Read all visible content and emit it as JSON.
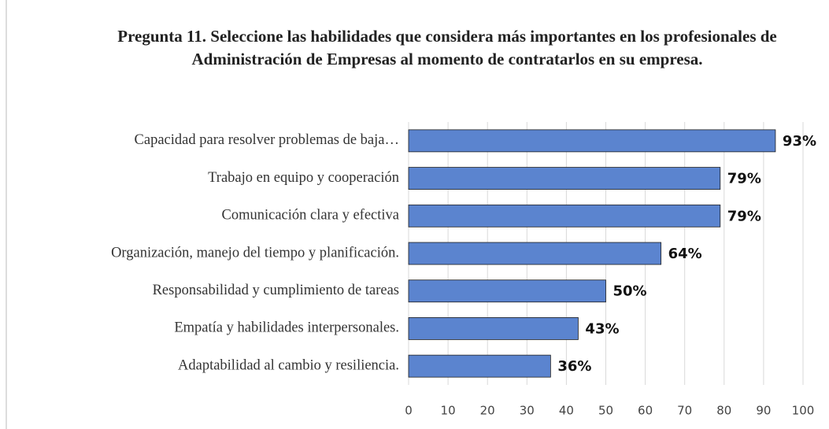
{
  "chart_data": {
    "type": "barh",
    "title": "Pregunta 11. Seleccione las habilidades que considera más importantes en los profesionales de Administración de Empresas al momento de contratarlos en su empresa.",
    "categories": [
      "Capacidad para resolver problemas de baja…",
      "Trabajo en equipo y cooperación",
      "Comunicación clara y efectiva",
      "Organización, manejo del tiempo y planificación.",
      "Responsabilidad y cumplimiento de tareas",
      "Empatía y habilidades interpersonales.",
      "Adaptabilidad al cambio y resiliencia."
    ],
    "values": [
      93,
      79,
      79,
      64,
      50,
      43,
      36
    ],
    "value_labels": [
      "93%",
      "79%",
      "79%",
      "64%",
      "50%",
      "43%",
      "36%"
    ],
    "color": "#5b84cf",
    "xlim": [
      0,
      100
    ],
    "xticks": [
      0,
      10,
      20,
      30,
      40,
      50,
      60,
      70,
      80,
      90,
      100
    ],
    "grid": true
  }
}
